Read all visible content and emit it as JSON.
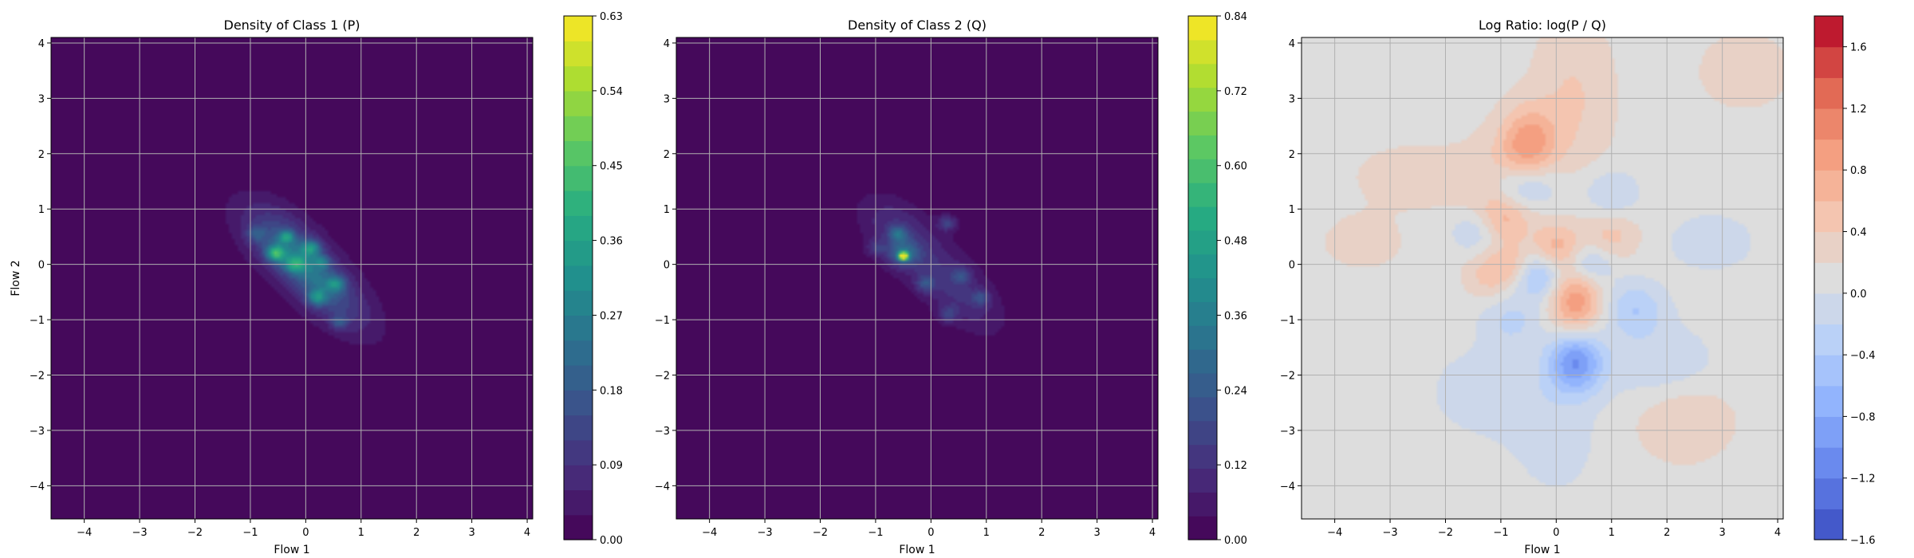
{
  "chart_data": [
    {
      "type": "heatmap",
      "title": "Density of Class 1 (P)",
      "xlabel": "Flow 1",
      "ylabel": "Flow 2",
      "xlim": [
        -4.6,
        4.1
      ],
      "ylim": [
        -4.6,
        4.1
      ],
      "xticks": [
        -4,
        -3,
        -2,
        -1,
        0,
        1,
        2,
        3,
        4
      ],
      "yticks": [
        -4,
        -3,
        -2,
        -1,
        0,
        1,
        2,
        3,
        4
      ],
      "grid": true,
      "colormap": "viridis",
      "colorbar": {
        "min": 0.0,
        "max": 0.63,
        "levels": 21,
        "ticks": [
          "0.00",
          "0.09",
          "0.18",
          "0.27",
          "0.36",
          "0.45",
          "0.54",
          "0.63"
        ]
      },
      "blobs": [
        {
          "x": 0.0,
          "y": -0.05,
          "sx": 1.05,
          "sy": 0.42,
          "angle": -42,
          "v": 0.1
        },
        {
          "x": -0.5,
          "y": 0.55,
          "sx": 0.55,
          "sy": 0.35,
          "angle": -40,
          "v": 0.06
        },
        {
          "x": 0.6,
          "y": -0.75,
          "sx": 0.55,
          "sy": 0.3,
          "angle": -40,
          "v": 0.05
        },
        {
          "x": -0.2,
          "y": 0.15,
          "sx": 0.38,
          "sy": 0.22,
          "angle": -40,
          "v": 0.1
        },
        {
          "x": 0.25,
          "y": -0.3,
          "sx": 0.36,
          "sy": 0.22,
          "angle": -40,
          "v": 0.09
        },
        {
          "x": -0.55,
          "y": 0.2,
          "sx": 0.12,
          "sy": 0.1,
          "angle": 0,
          "v": 0.28
        },
        {
          "x": -0.35,
          "y": 0.5,
          "sx": 0.1,
          "sy": 0.08,
          "angle": 0,
          "v": 0.2
        },
        {
          "x": 0.1,
          "y": 0.3,
          "sx": 0.12,
          "sy": 0.1,
          "angle": 0,
          "v": 0.22
        },
        {
          "x": 0.2,
          "y": -0.6,
          "sx": 0.12,
          "sy": 0.1,
          "angle": 0,
          "v": 0.2
        },
        {
          "x": -0.2,
          "y": 0.0,
          "sx": 0.14,
          "sy": 0.11,
          "angle": 0,
          "v": 0.18
        },
        {
          "x": 0.55,
          "y": -0.35,
          "sx": 0.12,
          "sy": 0.1,
          "angle": 0,
          "v": 0.17
        },
        {
          "x": 0.6,
          "y": -1.05,
          "sx": 0.1,
          "sy": 0.08,
          "angle": 0,
          "v": 0.12
        },
        {
          "x": -0.9,
          "y": 0.55,
          "sx": 0.12,
          "sy": 0.1,
          "angle": 0,
          "v": 0.1
        },
        {
          "x": 0.3,
          "y": 0.05,
          "sx": 0.1,
          "sy": 0.08,
          "angle": 0,
          "v": 0.15
        }
      ]
    },
    {
      "type": "heatmap",
      "title": "Density of Class 2 (Q)",
      "xlabel": "Flow 1",
      "ylabel": "",
      "xlim": [
        -4.6,
        4.1
      ],
      "ylim": [
        -4.6,
        4.1
      ],
      "xticks": [
        -4,
        -3,
        -2,
        -1,
        0,
        1,
        2,
        3,
        4
      ],
      "yticks": [
        -4,
        -3,
        -2,
        -1,
        0,
        1,
        2,
        3,
        4
      ],
      "grid": true,
      "colormap": "viridis",
      "colorbar": {
        "min": 0.0,
        "max": 0.84,
        "levels": 22,
        "ticks": [
          "0.00",
          "0.12",
          "0.24",
          "0.36",
          "0.48",
          "0.60",
          "0.72",
          "0.84"
        ]
      },
      "blobs": [
        {
          "x": 0.0,
          "y": 0.0,
          "sx": 1.0,
          "sy": 0.4,
          "angle": -40,
          "v": 0.1
        },
        {
          "x": -0.6,
          "y": 0.7,
          "sx": 0.5,
          "sy": 0.32,
          "angle": -40,
          "v": 0.06
        },
        {
          "x": 0.6,
          "y": -0.7,
          "sx": 0.55,
          "sy": 0.3,
          "angle": -40,
          "v": 0.05
        },
        {
          "x": -0.5,
          "y": 0.15,
          "sx": 0.06,
          "sy": 0.05,
          "angle": 0,
          "v": 0.75
        },
        {
          "x": -0.5,
          "y": 0.2,
          "sx": 0.2,
          "sy": 0.16,
          "angle": 0,
          "v": 0.22
        },
        {
          "x": -0.6,
          "y": 0.55,
          "sx": 0.12,
          "sy": 0.1,
          "angle": 0,
          "v": 0.2
        },
        {
          "x": 0.3,
          "y": 0.75,
          "sx": 0.12,
          "sy": 0.1,
          "angle": 0,
          "v": 0.15
        },
        {
          "x": -0.1,
          "y": -0.35,
          "sx": 0.12,
          "sy": 0.1,
          "angle": 0,
          "v": 0.15
        },
        {
          "x": 0.55,
          "y": -0.2,
          "sx": 0.12,
          "sy": 0.1,
          "angle": 0,
          "v": 0.14
        },
        {
          "x": 0.9,
          "y": -0.6,
          "sx": 0.12,
          "sy": 0.1,
          "angle": 0,
          "v": 0.13
        },
        {
          "x": 0.3,
          "y": -0.9,
          "sx": 0.12,
          "sy": 0.1,
          "angle": 0,
          "v": 0.12
        },
        {
          "x": -1.0,
          "y": 0.3,
          "sx": 0.12,
          "sy": 0.1,
          "angle": 0,
          "v": 0.1
        }
      ]
    },
    {
      "type": "heatmap",
      "title": "Log Ratio: log(P / Q)",
      "xlabel": "Flow 1",
      "ylabel": "",
      "xlim": [
        -4.6,
        4.1
      ],
      "ylim": [
        -4.6,
        4.1
      ],
      "xticks": [
        -4,
        -3,
        -2,
        -1,
        0,
        1,
        2,
        3,
        4
      ],
      "yticks": [
        -4,
        -3,
        -2,
        -1,
        0,
        1,
        2,
        3,
        4
      ],
      "grid": true,
      "colormap": "coolwarm",
      "background_value": 0.12,
      "colorbar": {
        "min": -1.6,
        "max": 1.8,
        "levels": 17,
        "ticks": [
          "−1.6",
          "−1.2",
          "−0.8",
          "−0.4",
          "0.0",
          "0.4",
          "0.8",
          "1.2",
          "1.6"
        ]
      },
      "blobs": [
        {
          "x": -0.5,
          "y": 2.2,
          "sx": 0.35,
          "sy": 0.45,
          "angle": 0,
          "v": 0.75
        },
        {
          "x": -1.0,
          "y": 1.2,
          "sx": 0.5,
          "sy": 0.7,
          "angle": 0,
          "v": 0.35
        },
        {
          "x": 0.3,
          "y": 3.0,
          "sx": 0.5,
          "sy": 1.0,
          "angle": 0,
          "v": 0.3
        },
        {
          "x": 0.35,
          "y": -0.7,
          "sx": 0.35,
          "sy": 0.45,
          "angle": 0,
          "v": 0.85
        },
        {
          "x": 0.0,
          "y": 0.3,
          "sx": 0.3,
          "sy": 0.3,
          "angle": 0,
          "v": 0.55
        },
        {
          "x": -1.0,
          "y": 0.8,
          "sx": 0.3,
          "sy": 0.3,
          "angle": 0,
          "v": 0.4
        },
        {
          "x": 1.0,
          "y": 0.5,
          "sx": 0.35,
          "sy": 0.3,
          "angle": 0,
          "v": 0.35
        },
        {
          "x": -1.2,
          "y": -0.2,
          "sx": 0.3,
          "sy": 0.3,
          "angle": 0,
          "v": 0.35
        },
        {
          "x": -0.8,
          "y": 0.0,
          "sx": 0.25,
          "sy": 0.25,
          "angle": 0,
          "v": 0.3
        },
        {
          "x": 2.3,
          "y": -2.8,
          "sx": 0.6,
          "sy": 0.5,
          "angle": 0,
          "v": 0.3
        },
        {
          "x": -2.5,
          "y": 1.6,
          "sx": 0.8,
          "sy": 0.4,
          "angle": 0,
          "v": 0.2
        },
        {
          "x": 3.4,
          "y": 3.5,
          "sx": 0.6,
          "sy": 0.5,
          "angle": 0,
          "v": 0.2
        },
        {
          "x": -3.5,
          "y": 0.4,
          "sx": 0.6,
          "sy": 0.4,
          "angle": 0,
          "v": 0.15
        },
        {
          "x": 0.35,
          "y": -1.75,
          "sx": 0.35,
          "sy": 0.4,
          "angle": 0,
          "v": -1.1
        },
        {
          "x": -0.6,
          "y": 1.4,
          "sx": 0.45,
          "sy": 0.3,
          "angle": 0,
          "v": -0.6
        },
        {
          "x": -0.3,
          "y": -0.2,
          "sx": 0.3,
          "sy": 0.3,
          "angle": 0,
          "v": -0.65
        },
        {
          "x": 0.6,
          "y": 0.0,
          "sx": 0.3,
          "sy": 0.25,
          "angle": 0,
          "v": -0.5
        },
        {
          "x": -1.4,
          "y": 0.6,
          "sx": 0.35,
          "sy": 0.3,
          "angle": 0,
          "v": -0.45
        },
        {
          "x": 1.4,
          "y": -0.8,
          "sx": 0.4,
          "sy": 0.35,
          "angle": 0,
          "v": -0.5
        },
        {
          "x": 1.0,
          "y": 1.3,
          "sx": 0.35,
          "sy": 0.3,
          "angle": 0,
          "v": -0.35
        },
        {
          "x": -0.8,
          "y": -1.0,
          "sx": 0.4,
          "sy": 0.35,
          "angle": 0,
          "v": -0.35
        },
        {
          "x": 1.9,
          "y": -1.8,
          "sx": 0.7,
          "sy": 0.5,
          "angle": 0,
          "v": -0.3
        },
        {
          "x": -1.2,
          "y": -2.3,
          "sx": 0.8,
          "sy": 0.6,
          "angle": 0,
          "v": -0.25
        },
        {
          "x": 2.8,
          "y": 0.4,
          "sx": 0.6,
          "sy": 0.4,
          "angle": 0,
          "v": -0.25
        },
        {
          "x": 0.0,
          "y": -3.2,
          "sx": 0.6,
          "sy": 0.8,
          "angle": 0,
          "v": -0.2
        }
      ]
    }
  ]
}
